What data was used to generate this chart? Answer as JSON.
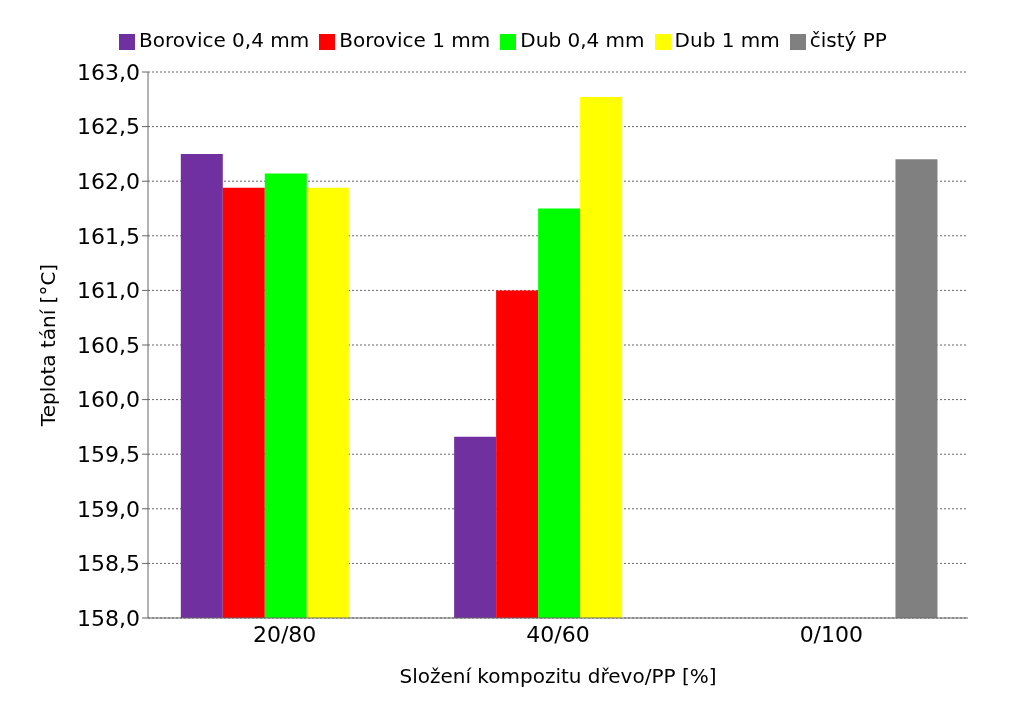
{
  "chart_data": {
    "type": "bar",
    "xlabel": "Složení kompozitu dřevo/PP [%]",
    "ylabel": "Teplota tání [°C]",
    "categories": [
      "20/80",
      "40/60",
      "0/100"
    ],
    "series": [
      {
        "name": "Borovice 0,4 mm",
        "color": "#7030a0",
        "values": [
          162.25,
          159.66,
          null
        ]
      },
      {
        "name": "Borovice 1 mm",
        "color": "#ff0000",
        "values": [
          161.94,
          161.0,
          null
        ]
      },
      {
        "name": "Dub 0,4 mm",
        "color": "#00ff00",
        "values": [
          162.07,
          161.75,
          null
        ]
      },
      {
        "name": "Dub 1 mm",
        "color": "#ffff00",
        "values": [
          161.94,
          162.77,
          null
        ]
      },
      {
        "name": "čistý PP",
        "color": "#808080",
        "values": [
          null,
          null,
          162.2
        ]
      }
    ],
    "ylim": [
      158,
      163
    ],
    "yticks": [
      {
        "value": 158,
        "label": "158,0"
      },
      {
        "value": 158.5,
        "label": "158,5"
      },
      {
        "value": 159,
        "label": "159,0"
      },
      {
        "value": 159.5,
        "label": "159,5"
      },
      {
        "value": 160,
        "label": "160,0"
      },
      {
        "value": 160.5,
        "label": "160,5"
      },
      {
        "value": 161,
        "label": "161,0"
      },
      {
        "value": 161.5,
        "label": "161,5"
      },
      {
        "value": 162,
        "label": "162,0"
      },
      {
        "value": 162.5,
        "label": "162,5"
      },
      {
        "value": 163,
        "label": "163,0"
      }
    ],
    "grid": "y",
    "legend": "top"
  }
}
